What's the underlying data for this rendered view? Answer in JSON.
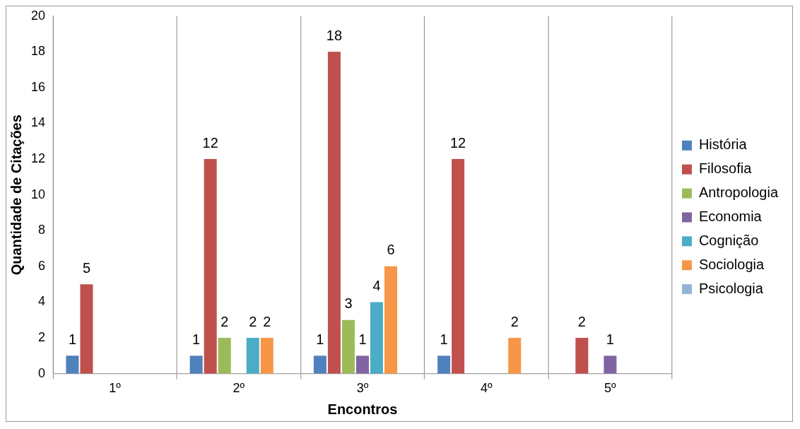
{
  "chart_data": {
    "type": "bar",
    "xlabel": "Encontros",
    "ylabel": "Quantidade de Citações",
    "categories": [
      "1º",
      "2º",
      "3º",
      "4º",
      "5º"
    ],
    "series": [
      {
        "name": "História",
        "color": "#4f81bd",
        "values": [
          1,
          1,
          1,
          1,
          null
        ]
      },
      {
        "name": "Filosofia",
        "color": "#c0504d",
        "values": [
          5,
          12,
          18,
          12,
          2
        ]
      },
      {
        "name": "Antropologia",
        "color": "#9bbb59",
        "values": [
          null,
          2,
          3,
          null,
          null
        ]
      },
      {
        "name": "Economia",
        "color": "#8064a2",
        "values": [
          null,
          null,
          1,
          null,
          1
        ]
      },
      {
        "name": "Cognição",
        "color": "#4bacc6",
        "values": [
          null,
          2,
          4,
          null,
          null
        ]
      },
      {
        "name": "Sociologia",
        "color": "#f79646",
        "values": [
          null,
          2,
          6,
          2,
          null
        ]
      },
      {
        "name": "Psicologia",
        "color": "#95b3d7",
        "values": [
          null,
          null,
          null,
          null,
          null
        ]
      }
    ],
    "ylim": [
      0,
      20
    ],
    "yticks": [
      0,
      2,
      4,
      6,
      8,
      10,
      12,
      14,
      16,
      18,
      20
    ],
    "grid": "x",
    "legend": "right",
    "data_labels": true
  }
}
